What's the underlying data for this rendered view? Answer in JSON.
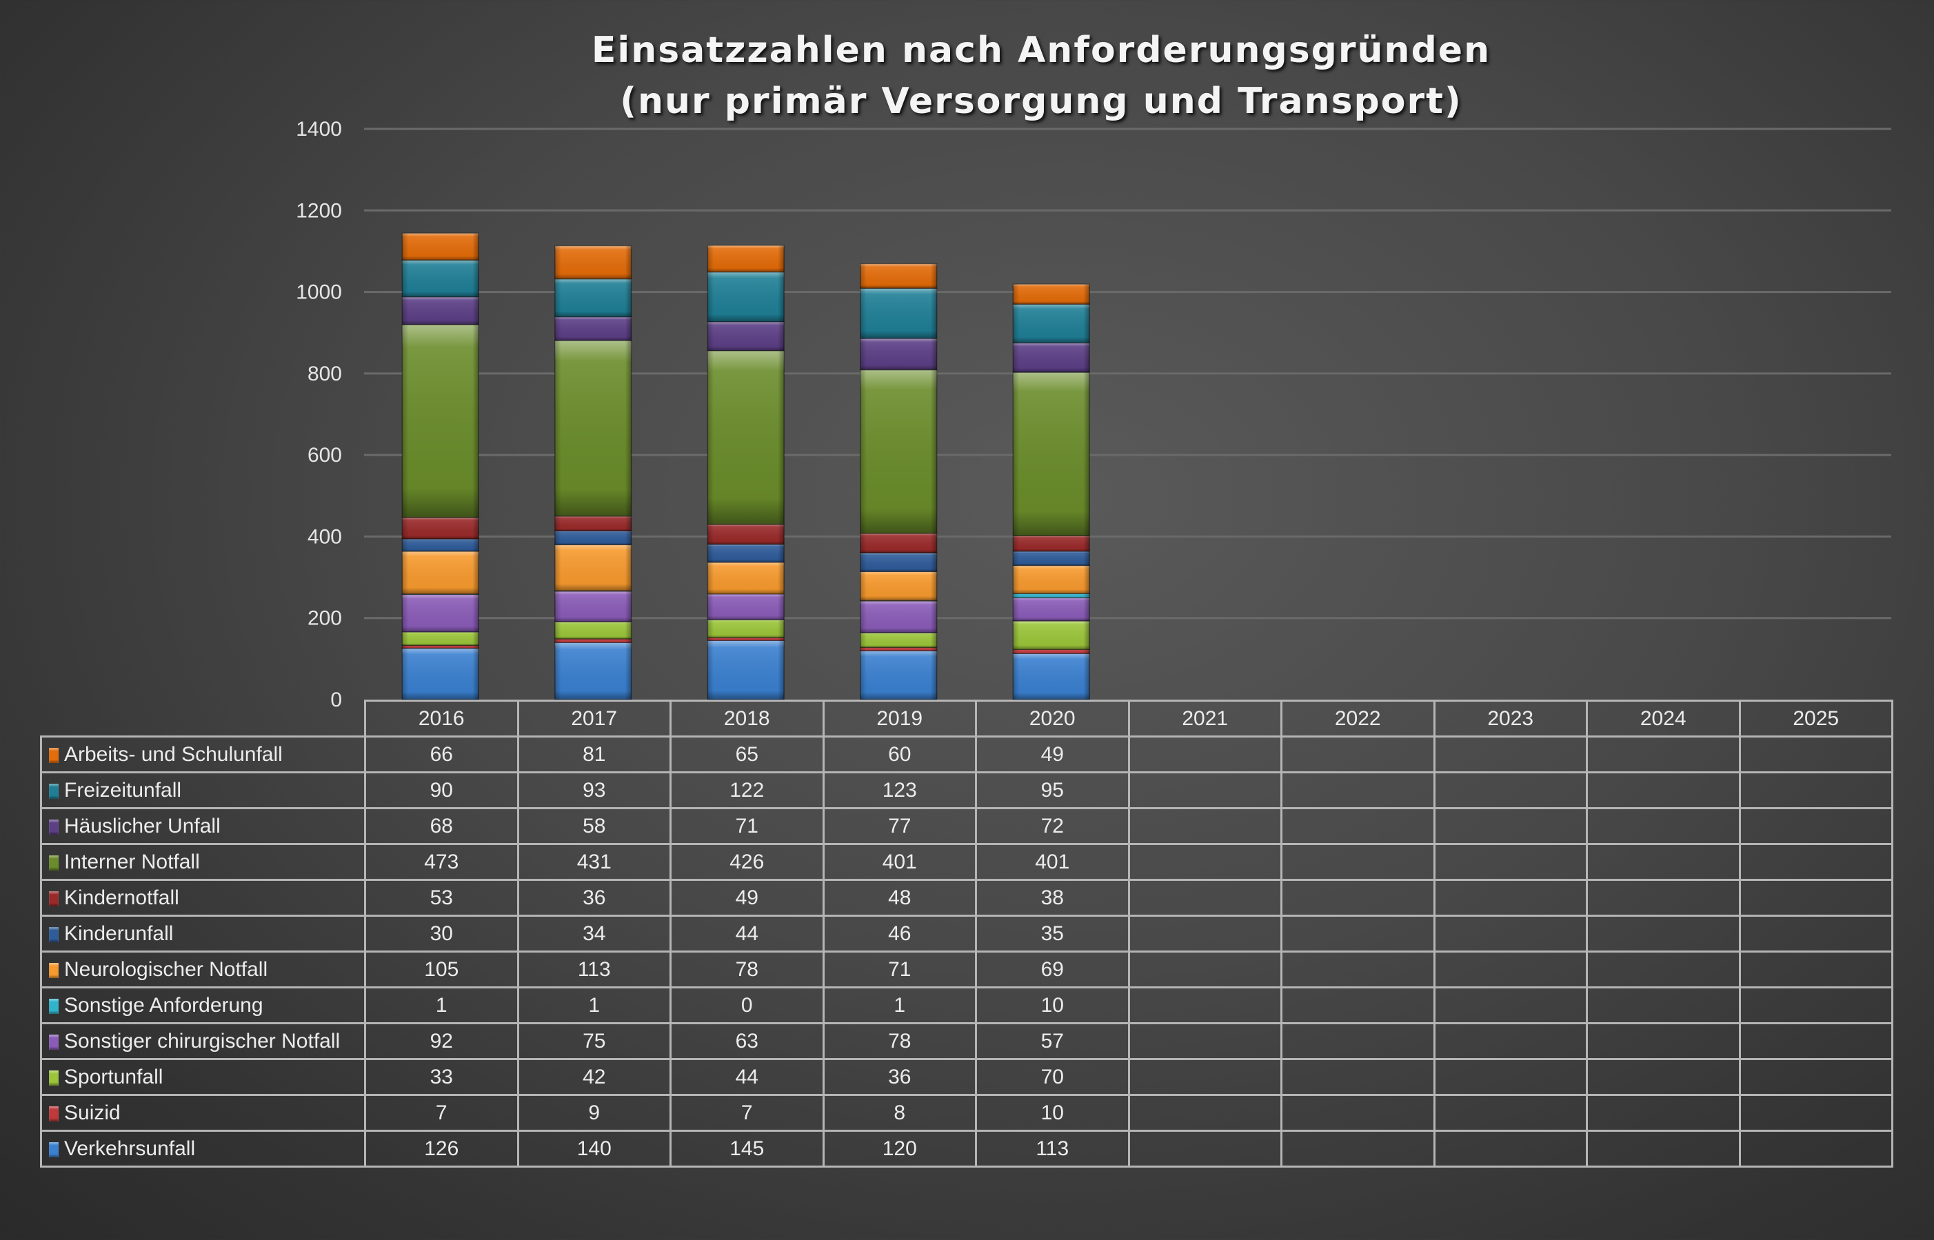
{
  "chart_data": {
    "type": "bar",
    "stacked": true,
    "title": "Einsatzzahlen nach Anforderungsgründen",
    "subtitle": "(nur primär Versorgung und Transport)",
    "xlabel": "",
    "ylabel": "",
    "ylim": [
      0,
      1400
    ],
    "yticks": [
      0,
      200,
      400,
      600,
      800,
      1000,
      1200,
      1400
    ],
    "grid": true,
    "legend": "data-table-below",
    "categories": [
      "2016",
      "2017",
      "2018",
      "2019",
      "2020",
      "2021",
      "2022",
      "2023",
      "2024",
      "2025"
    ],
    "series": [
      {
        "name": "Arbeits- und Schulunfall",
        "color": "#e46c0a",
        "values": [
          66,
          81,
          65,
          60,
          49,
          null,
          null,
          null,
          null,
          null
        ]
      },
      {
        "name": "Freizeitunfall",
        "color": "#1f7f96",
        "values": [
          90,
          93,
          122,
          123,
          95,
          null,
          null,
          null,
          null,
          null
        ]
      },
      {
        "name": "Häuslicher Unfall",
        "color": "#5c3f86",
        "values": [
          68,
          58,
          71,
          77,
          72,
          null,
          null,
          null,
          null,
          null
        ]
      },
      {
        "name": "Interner Notfall",
        "color": "#6a8c2a",
        "values": [
          473,
          431,
          426,
          401,
          401,
          null,
          null,
          null,
          null,
          null
        ]
      },
      {
        "name": "Kindernotfall",
        "color": "#9a2a2a",
        "values": [
          53,
          36,
          49,
          48,
          38,
          null,
          null,
          null,
          null,
          null
        ]
      },
      {
        "name": "Kinderunfall",
        "color": "#2f5c9a",
        "values": [
          30,
          34,
          44,
          46,
          35,
          null,
          null,
          null,
          null,
          null
        ]
      },
      {
        "name": "Neurologischer Notfall",
        "color": "#f79a2e",
        "values": [
          105,
          113,
          78,
          71,
          69,
          null,
          null,
          null,
          null,
          null
        ]
      },
      {
        "name": "Sonstige Anforderung",
        "color": "#30b4cc",
        "values": [
          1,
          1,
          0,
          1,
          10,
          null,
          null,
          null,
          null,
          null
        ]
      },
      {
        "name": "Sonstiger chirurgischer Notfall",
        "color": "#8a5cb8",
        "values": [
          92,
          75,
          63,
          78,
          57,
          null,
          null,
          null,
          null,
          null
        ]
      },
      {
        "name": "Sportunfall",
        "color": "#9cc63a",
        "values": [
          33,
          42,
          44,
          36,
          70,
          null,
          null,
          null,
          null,
          null
        ]
      },
      {
        "name": "Suizid",
        "color": "#c0393b",
        "values": [
          7,
          9,
          7,
          8,
          10,
          null,
          null,
          null,
          null,
          null
        ]
      },
      {
        "name": "Verkehrsunfall",
        "color": "#3a80d0",
        "values": [
          126,
          140,
          145,
          120,
          113,
          null,
          null,
          null,
          null,
          null
        ]
      }
    ]
  }
}
